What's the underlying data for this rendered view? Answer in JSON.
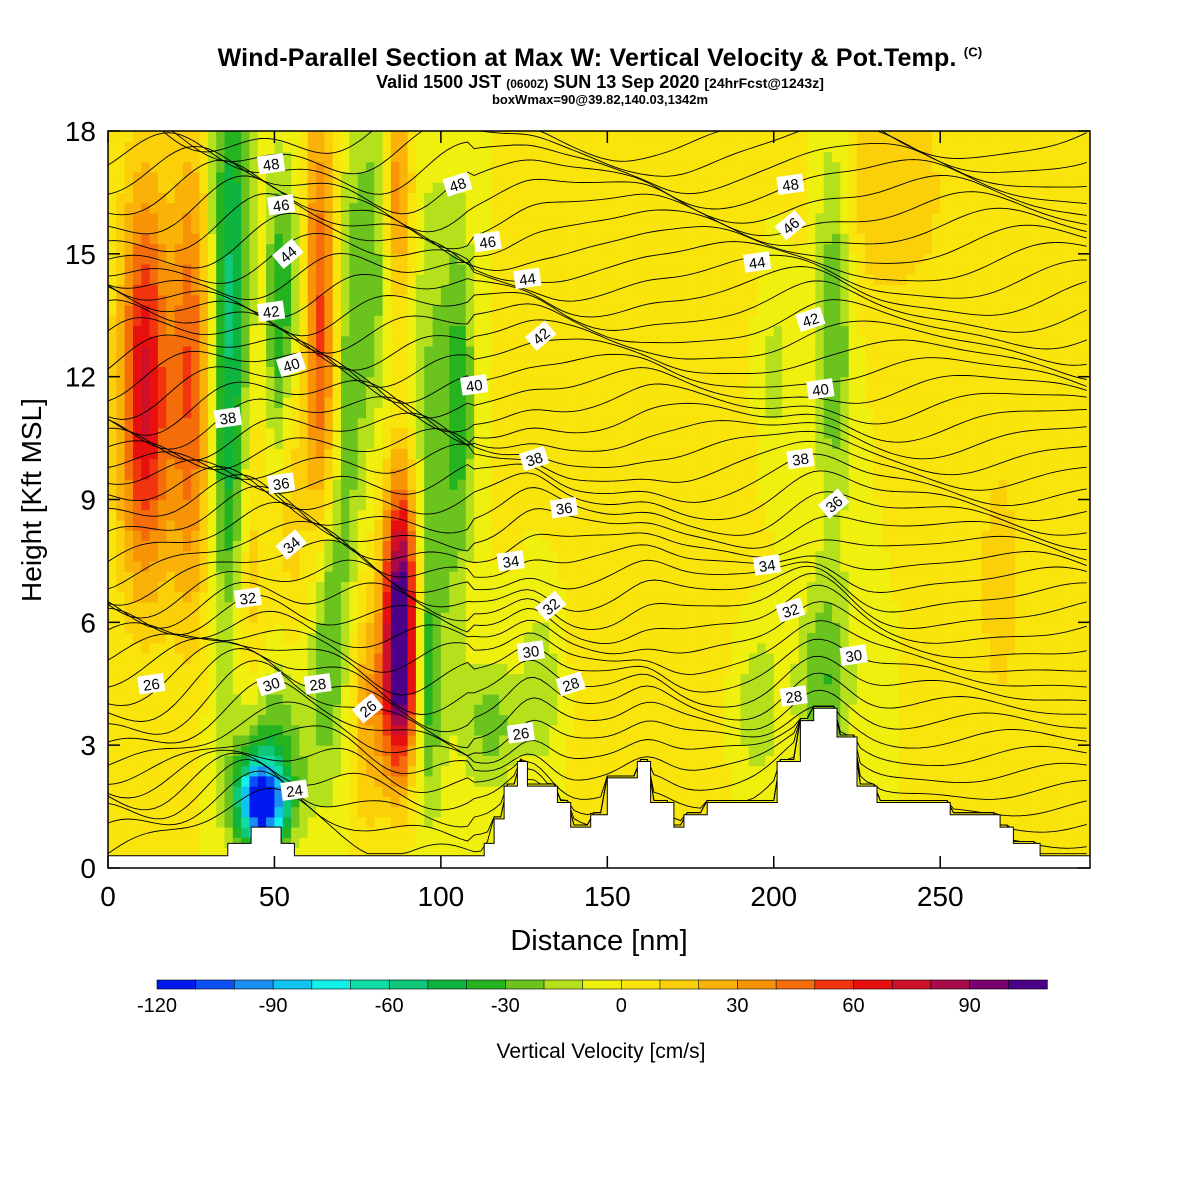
{
  "title": {
    "main": "Wind-Parallel Section at Max W: Vertical Velocity & Pot.Temp.",
    "copyright": "(C)",
    "valid_prefix": "Valid 1500 JST",
    "valid_utc": "(0600Z)",
    "valid_date": "SUN 13 Sep 2020",
    "forecast": "[24hrFcst@1243z]",
    "box": "boxWmax=90@39.82,140.03,1342m"
  },
  "colors": {
    "frame": "#000000",
    "background": "#ffffff",
    "terrain": "#ffffff",
    "palette": [
      "#0018f0",
      "#0a50f5",
      "#1a8ef2",
      "#0fc4ef",
      "#12f0e8",
      "#10dca6",
      "#0ec778",
      "#0fb43e",
      "#25b41f",
      "#6bc41e",
      "#b4e11c",
      "#f0f00f",
      "#f9e40b",
      "#fbd009",
      "#fab208",
      "#f89306",
      "#f56c0a",
      "#f2350f",
      "#e8100f",
      "#d0102a",
      "#a80a4a",
      "#7a0070",
      "#4c0088"
    ]
  },
  "colorbar": {
    "label": "Vertical Velocity [cm/s]",
    "min": -120,
    "max": 110,
    "step": 10,
    "ticks": [
      -120,
      -90,
      -60,
      -30,
      0,
      30,
      60,
      90
    ]
  },
  "chart_data": {
    "type": "heatmap",
    "xlabel": "Distance [nm]",
    "ylabel": "Height [Kft MSL]",
    "xlim": [
      0,
      295
    ],
    "ylim": [
      0,
      18
    ],
    "xticks": [
      0,
      50,
      100,
      150,
      200,
      250
    ],
    "yticks": [
      0,
      3,
      6,
      9,
      12,
      15,
      18
    ],
    "terrain_profile": {
      "x": [
        0,
        36,
        36,
        43,
        43,
        52,
        52,
        56,
        56,
        113,
        113,
        116,
        116,
        119,
        119,
        123,
        123,
        126,
        126,
        135,
        135,
        139,
        139,
        145,
        145,
        150,
        150,
        159,
        159,
        163,
        163,
        170,
        170,
        173,
        173,
        180,
        180,
        201,
        201,
        208,
        208,
        212,
        212,
        219,
        219,
        225,
        225,
        231,
        231,
        253,
        253,
        268,
        268,
        272,
        272,
        280,
        280,
        290,
        290,
        295
      ],
      "y": [
        0.3,
        0.3,
        0.6,
        0.6,
        1.0,
        1.0,
        0.6,
        0.6,
        0.3,
        0.3,
        0.6,
        0.6,
        1.2,
        1.2,
        2.0,
        2.0,
        2.6,
        2.6,
        2.0,
        2.0,
        1.6,
        1.6,
        1.0,
        1.0,
        1.3,
        1.3,
        2.2,
        2.2,
        2.6,
        2.6,
        1.6,
        1.6,
        1.0,
        1.0,
        1.3,
        1.3,
        1.6,
        1.6,
        2.6,
        2.6,
        3.6,
        3.6,
        3.9,
        3.9,
        3.2,
        3.2,
        2.0,
        2.0,
        1.6,
        1.6,
        1.3,
        1.3,
        1.0,
        1.0,
        0.6,
        0.6,
        0.3,
        0.3,
        0.3,
        0.3
      ]
    },
    "w_features": [
      {
        "x": 11,
        "z": 12.5,
        "sx": 5,
        "sz": 3.2,
        "w": 60
      },
      {
        "x": 11,
        "z": 9.5,
        "sx": 6,
        "sz": 2.5,
        "w": 22
      },
      {
        "x": 25,
        "z": 12.0,
        "sx": 4.5,
        "sz": 4,
        "w": 50
      },
      {
        "x": 37,
        "z": 14.0,
        "sx": 4.5,
        "sz": 4.5,
        "w": -55
      },
      {
        "x": 37,
        "z": 8.5,
        "sx": 4,
        "sz": 2.5,
        "w": -20
      },
      {
        "x": 42,
        "z": 8.0,
        "sx": 4,
        "sz": 4,
        "w": 25
      },
      {
        "x": 46,
        "z": 1.6,
        "sx": 5,
        "sz": 0.7,
        "w": -120
      },
      {
        "x": 48,
        "z": 2.8,
        "sx": 9,
        "sz": 1.5,
        "w": -35
      },
      {
        "x": 52,
        "z": 13.5,
        "sx": 3,
        "sz": 2.5,
        "w": -45
      },
      {
        "x": 55,
        "z": 11.0,
        "sx": 2.5,
        "sz": 3,
        "w": 30
      },
      {
        "x": 57,
        "z": 13.0,
        "sx": 3,
        "sz": 3,
        "w": -35
      },
      {
        "x": 64,
        "z": 13.0,
        "sx": 5,
        "sz": 4,
        "w": 62
      },
      {
        "x": 66,
        "z": 6.0,
        "sx": 4,
        "sz": 2.5,
        "w": -35
      },
      {
        "x": 71,
        "z": 12.5,
        "sx": 4,
        "sz": 4,
        "w": -40
      },
      {
        "x": 78,
        "z": 4.0,
        "sx": 4,
        "sz": 2,
        "w": 28
      },
      {
        "x": 80,
        "z": 15.0,
        "sx": 4,
        "sz": 3,
        "w": -25
      },
      {
        "x": 87,
        "z": 16.5,
        "sx": 3,
        "sz": 2,
        "w": 40
      },
      {
        "x": 88,
        "z": 6.5,
        "sx": 3.5,
        "sz": 2.2,
        "w": 105
      },
      {
        "x": 88,
        "z": 4.2,
        "sx": 4,
        "sz": 1.5,
        "w": 55
      },
      {
        "x": 95,
        "z": 4.5,
        "sx": 3,
        "sz": 2,
        "w": -35
      },
      {
        "x": 98,
        "z": 10.0,
        "sx": 5,
        "sz": 5,
        "w": -25
      },
      {
        "x": 106,
        "z": 11.5,
        "sx": 3,
        "sz": 3,
        "w": -30
      },
      {
        "x": 115,
        "z": 3.5,
        "sx": 6,
        "sz": 1.2,
        "w": -25
      },
      {
        "x": 130,
        "z": 4.5,
        "sx": 4,
        "sz": 1.5,
        "w": -20
      },
      {
        "x": 195,
        "z": 4.0,
        "sx": 5,
        "sz": 1.5,
        "w": -20
      },
      {
        "x": 215,
        "z": 4.5,
        "sx": 6,
        "sz": 1.8,
        "w": -30
      },
      {
        "x": 218,
        "z": 13.5,
        "sx": 4,
        "sz": 3.5,
        "w": -32
      },
      {
        "x": 200,
        "z": 12.0,
        "sx": 4,
        "sz": 2,
        "w": -15
      },
      {
        "x": 235,
        "z": 16.5,
        "sx": 12,
        "sz": 2,
        "w": 20
      },
      {
        "x": 268,
        "z": 7.0,
        "sx": 8,
        "sz": 4,
        "w": 12
      },
      {
        "x": 170,
        "z": 10.0,
        "sx": 20,
        "sz": 6,
        "w": 8
      }
    ],
    "theta_labels": [
      {
        "value": "48",
        "x": 49,
        "z": 17.2
      },
      {
        "value": "46",
        "x": 52,
        "z": 16.2
      },
      {
        "value": "44",
        "x": 54,
        "z": 15.0
      },
      {
        "value": "42",
        "x": 49,
        "z": 13.6
      },
      {
        "value": "40",
        "x": 55,
        "z": 12.3
      },
      {
        "value": "38",
        "x": 36,
        "z": 11.0
      },
      {
        "value": "36",
        "x": 52,
        "z": 9.4
      },
      {
        "value": "34",
        "x": 55,
        "z": 7.9
      },
      {
        "value": "32",
        "x": 42,
        "z": 6.6
      },
      {
        "value": "30",
        "x": 49,
        "z": 4.5
      },
      {
        "value": "28",
        "x": 63,
        "z": 4.5
      },
      {
        "value": "26",
        "x": 13,
        "z": 4.5
      },
      {
        "value": "26",
        "x": 78,
        "z": 3.9
      },
      {
        "value": "24",
        "x": 56,
        "z": 1.9
      },
      {
        "value": "48",
        "x": 105,
        "z": 16.7
      },
      {
        "value": "46",
        "x": 114,
        "z": 15.3
      },
      {
        "value": "44",
        "x": 126,
        "z": 14.4
      },
      {
        "value": "42",
        "x": 130,
        "z": 13.0
      },
      {
        "value": "40",
        "x": 110,
        "z": 11.8
      },
      {
        "value": "38",
        "x": 128,
        "z": 10.0
      },
      {
        "value": "36",
        "x": 137,
        "z": 8.8
      },
      {
        "value": "34",
        "x": 121,
        "z": 7.5
      },
      {
        "value": "32",
        "x": 133,
        "z": 6.4
      },
      {
        "value": "30",
        "x": 127,
        "z": 5.3
      },
      {
        "value": "28",
        "x": 139,
        "z": 4.5
      },
      {
        "value": "26",
        "x": 124,
        "z": 3.3
      },
      {
        "value": "48",
        "x": 205,
        "z": 16.7
      },
      {
        "value": "46",
        "x": 205,
        "z": 15.7
      },
      {
        "value": "44",
        "x": 195,
        "z": 14.8
      },
      {
        "value": "42",
        "x": 211,
        "z": 13.4
      },
      {
        "value": "40",
        "x": 214,
        "z": 11.7
      },
      {
        "value": "38",
        "x": 208,
        "z": 10.0
      },
      {
        "value": "36",
        "x": 218,
        "z": 8.9
      },
      {
        "value": "34",
        "x": 198,
        "z": 7.4
      },
      {
        "value": "32",
        "x": 205,
        "z": 6.3
      },
      {
        "value": "30",
        "x": 224,
        "z": 5.2
      },
      {
        "value": "28",
        "x": 206,
        "z": 4.2
      }
    ]
  }
}
